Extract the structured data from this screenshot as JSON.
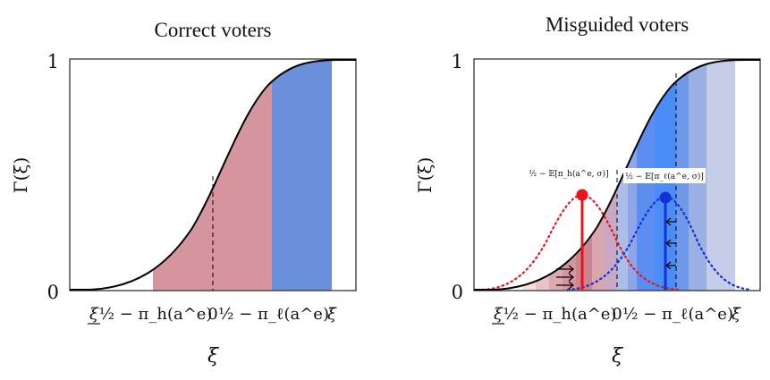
{
  "panels": [
    {
      "title": "Correct voters",
      "y_axis_label": "Γ(ξ)",
      "x_axis_label": "ξ",
      "y_tick_labels": [
        "1",
        "0"
      ],
      "x_tick_labels": [
        "ξ",
        "½ − π_h(a^e)",
        "0",
        "½ − π_ℓ(a^e)",
        "ξ̄"
      ]
    },
    {
      "title": "Misguided voters",
      "y_axis_label": "Γ(ξ)",
      "x_axis_label": "ξ",
      "y_tick_labels": [
        "1",
        "0"
      ],
      "x_tick_labels": [
        "ξ",
        "½ − π_h(a^e)",
        "0",
        "½ − π_ℓ(a^e)",
        "ξ̄"
      ],
      "annotations": {
        "red": "½ − 𝔼[π_h(a^e, σ)]",
        "blue": "½ − 𝔼[π_ℓ(a^e, σ)]"
      }
    }
  ],
  "colors": {
    "red_region": "#d4959f",
    "blue_region": "#6a8fdb",
    "red_line": "#e8141c",
    "blue_line": "#1232d6",
    "curve": "#000000"
  }
}
